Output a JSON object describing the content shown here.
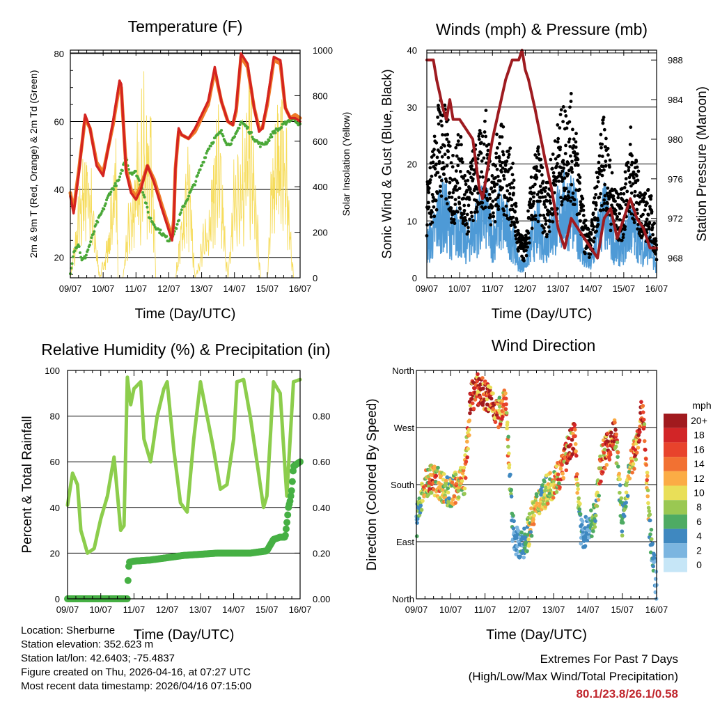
{
  "station": {
    "location": "Location: Sherburne",
    "elevation": "Station elevation: 352.623 m",
    "latlon": "Station lat/lon: 42.6403; -75.4837",
    "created": "Figure created on Thu, 2026-04-16, at 07:27 UTC",
    "recent": "Most recent data timestamp: 2026/04/16 07:15:00"
  },
  "extremes": {
    "title": "Extremes For Past 7 Days",
    "subtitle": "(High/Low/Max Wind/Total Precipitation)",
    "values": "80.1/23.8/26.1/0.58"
  },
  "colors": {
    "temp_red": "#d42420",
    "temp_orange": "#f07a28",
    "dewpoint": "#4aa838",
    "solar": "#f5d84a",
    "gust": "#000000",
    "wind": "#4e9ad6",
    "pressure": "#9e1b20",
    "rh": "#8ccd4c",
    "precip": "#46b044"
  },
  "chart_data": [
    {
      "id": "temperature",
      "type": "line",
      "title": "Temperature (F)",
      "xlabel": "Time (Day/UTC)",
      "ylabel": "2m & 9m T (Red, Orange) & 2m Td (Green)",
      "ylabel_right": "Solar Insolation (Yellow)",
      "x_ticks": [
        "09/07",
        "10/07",
        "11/07",
        "12/07",
        "13/07",
        "14/07",
        "15/07",
        "16/07"
      ],
      "xlim": [
        0,
        7
      ],
      "ylim": [
        14,
        81
      ],
      "y_ticks": [
        20,
        40,
        60,
        80
      ],
      "ylim_right": [
        0,
        1000
      ],
      "y_ticks_right": [
        0,
        200,
        400,
        600,
        800,
        1000
      ],
      "series": [
        {
          "name": "2m T",
          "x": [
            0,
            0.1,
            0.25,
            0.45,
            0.6,
            0.8,
            1.0,
            1.3,
            1.5,
            1.55,
            1.7,
            1.85,
            2.0,
            2.15,
            2.35,
            2.55,
            2.8,
            3.0,
            3.1,
            3.15,
            3.2,
            3.3,
            3.4,
            3.6,
            3.8,
            4.0,
            4.2,
            4.4,
            4.6,
            4.8,
            4.95,
            5.05,
            5.2,
            5.4,
            5.6,
            5.75,
            5.85,
            6.0,
            6.2,
            6.4,
            6.55,
            6.7,
            6.85,
            7.0
          ],
          "values": [
            38,
            33,
            44,
            62,
            58,
            47,
            44,
            60,
            72,
            71,
            45,
            39,
            37,
            40,
            47,
            42,
            34,
            28,
            25,
            30,
            46,
            58,
            56,
            55,
            58,
            62,
            66,
            76,
            66,
            60,
            59,
            64,
            80,
            77,
            64,
            57,
            58,
            66,
            79,
            78,
            64,
            61,
            61,
            60
          ]
        },
        {
          "name": "9m T",
          "x": [
            0,
            0.1,
            0.25,
            0.45,
            0.6,
            0.8,
            1.0,
            1.3,
            1.5,
            1.55,
            1.7,
            1.85,
            2.0,
            2.15,
            2.35,
            2.55,
            2.8,
            3.0,
            3.1,
            3.15,
            3.2,
            3.3,
            3.4,
            3.6,
            3.8,
            4.0,
            4.2,
            4.4,
            4.6,
            4.8,
            4.95,
            5.05,
            5.2,
            5.4,
            5.6,
            5.75,
            5.85,
            6.0,
            6.2,
            6.4,
            6.55,
            6.7,
            6.85,
            7.0
          ],
          "values": [
            39,
            34,
            45,
            61,
            58,
            48,
            45,
            59,
            71,
            70,
            46,
            40,
            38,
            41,
            47,
            43,
            35,
            29,
            26,
            31,
            46,
            57,
            56,
            55,
            57,
            61,
            65,
            75,
            66,
            60,
            59,
            63,
            79,
            76,
            64,
            58,
            58,
            65,
            78,
            77,
            64,
            61,
            62,
            61
          ]
        },
        {
          "name": "2m Td",
          "x": [
            0,
            0.1,
            0.25,
            0.35,
            0.45,
            0.6,
            0.8,
            1.0,
            1.2,
            1.5,
            1.7,
            1.8,
            2.0,
            2.2,
            2.4,
            2.6,
            2.8,
            3.0,
            3.2,
            3.4,
            3.6,
            3.8,
            4.0,
            4.2,
            4.4,
            4.6,
            4.8,
            5.0,
            5.2,
            5.4,
            5.6,
            5.8,
            6.0,
            6.2,
            6.4,
            6.6,
            6.8,
            7.0
          ],
          "values": [
            15,
            22,
            24,
            19,
            20,
            24,
            30,
            34,
            39,
            43,
            50,
            45,
            45,
            40,
            32,
            29,
            27,
            25,
            28,
            34,
            38,
            42,
            47,
            52,
            55,
            57,
            53,
            55,
            60,
            58,
            55,
            53,
            54,
            57,
            58,
            60,
            61,
            59
          ]
        },
        {
          "name": "Solar Insolation",
          "axis": "right",
          "x": [
            0,
            0.5,
            0.9,
            1.2,
            1.4,
            1.45,
            1.6,
            1.8,
            2.2,
            2.5,
            2.6,
            2.8,
            3.0,
            3.2,
            3.6,
            3.8,
            4.2,
            4.5,
            4.8,
            5.0,
            5.5,
            5.8,
            6.0,
            6.2,
            6.5,
            6.8
          ],
          "values": [
            0,
            800,
            0,
            300,
            900,
            0,
            0,
            400,
            900,
            980,
            0,
            0,
            0,
            0,
            700,
            0,
            400,
            850,
            0,
            600,
            950,
            0,
            0,
            900,
            950,
            0
          ]
        }
      ]
    },
    {
      "id": "winds",
      "type": "scatter",
      "title": "Winds (mph) & Pressure (mb)",
      "xlabel": "Time (Day/UTC)",
      "ylabel": "Sonic Wind & Gust (Blue, Black)",
      "ylabel_right": "Station Pressure (Maroon)",
      "x_ticks": [
        "09/07",
        "10/07",
        "11/07",
        "12/07",
        "13/07",
        "14/07",
        "15/07",
        "16/07"
      ],
      "xlim": [
        0,
        7
      ],
      "ylim": [
        0,
        40
      ],
      "y_ticks": [
        0,
        10,
        20,
        30,
        40
      ],
      "ylim_right": [
        966,
        989
      ],
      "y_ticks_right": [
        968,
        972,
        976,
        980,
        984,
        988
      ],
      "series": [
        {
          "name": "Gust",
          "x": [
            0,
            0.2,
            0.4,
            0.6,
            0.8,
            1.0,
            1.2,
            1.4,
            1.6,
            1.8,
            2.0,
            2.2,
            2.4,
            2.6,
            2.8,
            3.0,
            3.2,
            3.4,
            3.6,
            3.8,
            4.0,
            4.2,
            4.4,
            4.6,
            4.8,
            5.0,
            5.2,
            5.4,
            5.6,
            5.8,
            6.0,
            6.2,
            6.4,
            6.6,
            6.8,
            7.0
          ],
          "values": [
            12,
            18,
            25,
            22,
            16,
            20,
            13,
            17,
            19,
            22,
            15,
            21,
            19,
            16,
            6,
            5,
            14,
            18,
            12,
            16,
            21,
            23,
            24,
            18,
            8,
            6,
            16,
            22,
            15,
            11,
            12,
            20,
            15,
            11,
            12,
            5
          ]
        },
        {
          "name": "Wind",
          "x": [
            0,
            0.2,
            0.4,
            0.6,
            0.8,
            1.0,
            1.2,
            1.4,
            1.6,
            1.8,
            2.0,
            2.2,
            2.4,
            2.6,
            2.8,
            3.0,
            3.2,
            3.4,
            3.6,
            3.8,
            4.0,
            4.2,
            4.4,
            4.6,
            4.8,
            5.0,
            5.2,
            5.4,
            5.6,
            5.8,
            6.0,
            6.2,
            6.4,
            6.6,
            6.8,
            7.0
          ],
          "values": [
            7,
            9,
            14,
            13,
            9,
            11,
            7,
            10,
            12,
            14,
            8,
            13,
            11,
            9,
            3,
            3,
            8,
            11,
            7,
            10,
            13,
            15,
            15,
            11,
            4,
            3,
            9,
            14,
            9,
            6,
            7,
            12,
            9,
            6,
            7,
            2
          ]
        },
        {
          "name": "Pressure",
          "axis": "right",
          "x": [
            0,
            0.2,
            0.3,
            0.5,
            0.6,
            0.7,
            0.8,
            1.0,
            1.2,
            1.4,
            1.6,
            1.7,
            2.0,
            2.2,
            2.4,
            2.6,
            2.8,
            2.9,
            3.0,
            3.1,
            3.3,
            3.6,
            3.8,
            4.0,
            4.2,
            4.4,
            4.6,
            4.8,
            5.0,
            5.2,
            5.4,
            5.6,
            5.8,
            6.0,
            6.2,
            6.4,
            6.6,
            6.8,
            7.0
          ],
          "values": [
            988,
            988,
            986,
            983,
            982,
            984,
            982,
            982,
            981,
            980,
            975,
            974,
            980,
            983,
            986,
            988,
            988,
            989,
            987,
            986,
            983,
            978,
            975,
            971,
            969,
            972,
            971,
            970,
            969,
            968,
            972,
            973,
            970,
            972,
            974,
            972,
            971,
            969,
            969
          ]
        }
      ]
    },
    {
      "id": "humidity",
      "type": "line",
      "title": "Relative Humidity (%) & Precipitation (in)",
      "xlabel": "Time (Day/UTC)",
      "ylabel": "Percent & Total Rainfall",
      "x_ticks": [
        "09/07",
        "10/07",
        "11/07",
        "12/07",
        "13/07",
        "14/07",
        "15/07",
        "16/07"
      ],
      "xlim": [
        0,
        7
      ],
      "ylim": [
        0,
        100
      ],
      "y_ticks": [
        0,
        20,
        40,
        60,
        80,
        100
      ],
      "ylim_right": [
        0,
        1
      ],
      "y_ticks_right": [
        "0.00",
        "0.20",
        "0.40",
        "0.60",
        "0.80"
      ],
      "series": [
        {
          "name": "RH",
          "x": [
            0,
            0.15,
            0.3,
            0.4,
            0.6,
            0.8,
            1.0,
            1.2,
            1.4,
            1.6,
            1.7,
            1.8,
            1.9,
            2.0,
            2.2,
            2.3,
            2.5,
            2.7,
            2.9,
            3.0,
            3.2,
            3.4,
            3.6,
            3.8,
            4.0,
            4.2,
            4.4,
            4.6,
            4.8,
            5.0,
            5.1,
            5.3,
            5.5,
            5.7,
            5.9,
            6.0,
            6.2,
            6.4,
            6.6,
            6.8,
            7.0
          ],
          "values": [
            41,
            55,
            50,
            30,
            20,
            22,
            35,
            45,
            62,
            30,
            32,
            97,
            85,
            92,
            95,
            70,
            60,
            80,
            92,
            95,
            65,
            42,
            38,
            70,
            95,
            80,
            65,
            48,
            50,
            70,
            95,
            96,
            80,
            60,
            40,
            45,
            95,
            90,
            45,
            95,
            96
          ]
        },
        {
          "name": "Total Precipitation",
          "axis": "right",
          "x": [
            0,
            1.0,
            1.8,
            1.82,
            1.85,
            2.0,
            2.5,
            3.0,
            3.5,
            4.0,
            4.5,
            5.0,
            5.5,
            6.0,
            6.2,
            6.4,
            6.55,
            6.6,
            6.65,
            6.7,
            6.75,
            6.8,
            7.0
          ],
          "values": [
            0,
            0,
            0,
            0.08,
            0.16,
            0.165,
            0.17,
            0.18,
            0.19,
            0.195,
            0.2,
            0.2,
            0.2,
            0.21,
            0.26,
            0.27,
            0.27,
            0.33,
            0.4,
            0.43,
            0.48,
            0.58,
            0.6
          ]
        }
      ]
    },
    {
      "id": "direction",
      "type": "scatter",
      "title": "Wind Direction",
      "xlabel": "Time (Day/UTC)",
      "ylabel": "Direction (Colored By Speed)",
      "x_ticks": [
        "09/07",
        "10/07",
        "11/07",
        "12/07",
        "13/07",
        "14/07",
        "15/07",
        "16/07"
      ],
      "xlim": [
        0,
        7
      ],
      "ylim": [
        0,
        360
      ],
      "y_ticks": [
        "North",
        "East",
        "South",
        "West",
        "North"
      ],
      "legend_title": "mph",
      "legend_labels": [
        "20+",
        "18",
        "16",
        "14",
        "12",
        "10",
        "8",
        "6",
        "4",
        "2",
        "0"
      ],
      "legend_colors": [
        "#a11a1e",
        "#d22527",
        "#e8432c",
        "#f27132",
        "#fbac45",
        "#e9df58",
        "#9ac852",
        "#4eab63",
        "#3f88c0",
        "#7bb5e0",
        "#c6e6f7"
      ],
      "legend_position": "right",
      "series": [
        {
          "name": "Direction",
          "x": [
            0,
            0.2,
            0.4,
            0.6,
            0.8,
            1.0,
            1.2,
            1.4,
            1.6,
            1.8,
            2.0,
            2.2,
            2.4,
            2.6,
            2.8,
            3.0,
            3.2,
            3.4,
            3.6,
            3.8,
            4.0,
            4.2,
            4.4,
            4.6,
            4.8,
            5.0,
            5.2,
            5.4,
            5.6,
            5.8,
            6.0,
            6.2,
            6.4,
            6.6,
            6.8,
            6.9,
            7.0
          ],
          "values": [
            120,
            170,
            190,
            185,
            175,
            165,
            180,
            190,
            320,
            330,
            320,
            310,
            290,
            320,
            110,
            80,
            95,
            130,
            160,
            170,
            185,
            200,
            230,
            260,
            100,
            110,
            130,
            220,
            240,
            260,
            120,
            200,
            240,
            300,
            110,
            60,
            20
          ],
          "speeds": [
            4,
            10,
            14,
            12,
            9,
            8,
            12,
            10,
            18,
            16,
            20,
            17,
            12,
            14,
            4,
            3,
            6,
            10,
            8,
            9,
            11,
            12,
            15,
            17,
            4,
            3,
            6,
            14,
            17,
            15,
            5,
            8,
            16,
            18,
            6,
            4,
            2
          ]
        }
      ]
    }
  ]
}
